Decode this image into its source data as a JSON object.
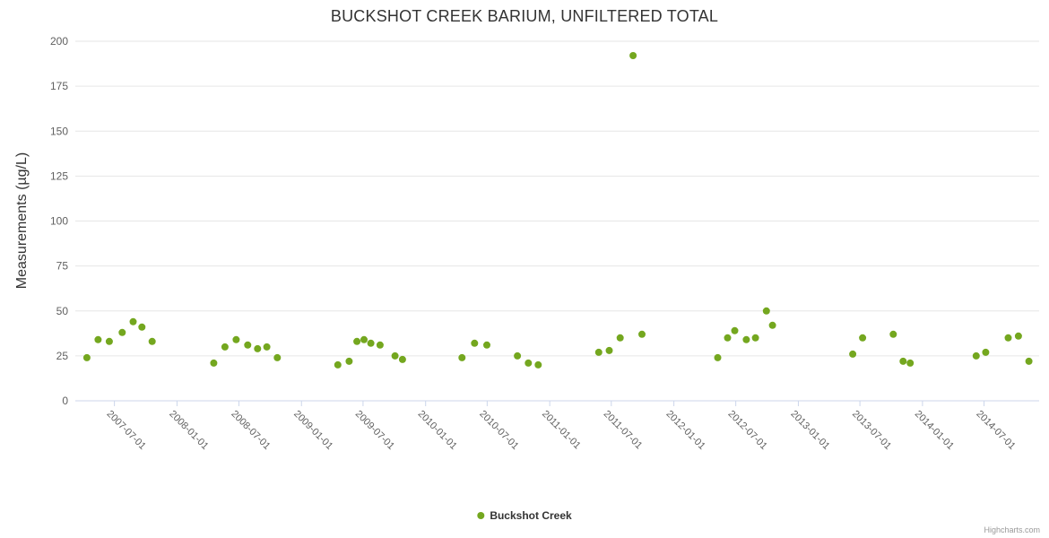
{
  "chart_data": {
    "type": "scatter",
    "title": "BUCKSHOT CREEK BARIUM, UNFILTERED TOTAL",
    "xlabel": "",
    "ylabel": "Measurements (µg/L)",
    "ylim": [
      0,
      200
    ],
    "yticks": [
      0,
      25,
      50,
      75,
      100,
      125,
      150,
      175,
      200
    ],
    "xlim": [
      "2007-03-08",
      "2014-12-10"
    ],
    "xticks": [
      "2007-07-01",
      "2008-01-01",
      "2008-07-01",
      "2009-01-01",
      "2009-07-01",
      "2010-01-01",
      "2010-07-01",
      "2011-01-01",
      "2011-07-01",
      "2012-01-01",
      "2012-07-01",
      "2013-01-01",
      "2013-07-01",
      "2014-01-01",
      "2014-07-01"
    ],
    "grid": "horizontal-only",
    "legend_position": "bottom-center",
    "colors": {
      "grid": "#e6e6e6",
      "axis_line": "#ccd6eb",
      "tick_label": "#606060",
      "title": "#333333",
      "point": "#74a71f"
    },
    "series": [
      {
        "name": "Buckshot Creek",
        "color": "#74a71f",
        "marker": "circle",
        "data": [
          [
            "2007-04-11",
            24
          ],
          [
            "2007-05-14",
            34
          ],
          [
            "2007-06-16",
            33
          ],
          [
            "2007-07-24",
            38
          ],
          [
            "2007-08-25",
            44
          ],
          [
            "2007-09-20",
            41
          ],
          [
            "2007-10-20",
            33
          ],
          [
            "2008-04-18",
            21
          ],
          [
            "2008-05-21",
            30
          ],
          [
            "2008-06-23",
            34
          ],
          [
            "2008-07-27",
            31
          ],
          [
            "2008-08-25",
            29
          ],
          [
            "2008-09-21",
            30
          ],
          [
            "2008-10-22",
            24
          ],
          [
            "2009-04-18",
            20
          ],
          [
            "2009-05-21",
            22
          ],
          [
            "2009-06-13",
            33
          ],
          [
            "2009-07-04",
            34
          ],
          [
            "2009-07-24",
            32
          ],
          [
            "2009-08-20",
            31
          ],
          [
            "2009-10-03",
            25
          ],
          [
            "2009-10-25",
            23
          ],
          [
            "2010-04-18",
            24
          ],
          [
            "2010-05-25",
            32
          ],
          [
            "2010-06-30",
            31
          ],
          [
            "2010-09-28",
            25
          ],
          [
            "2010-10-30",
            21
          ],
          [
            "2010-11-28",
            20
          ],
          [
            "2011-05-25",
            27
          ],
          [
            "2011-06-25",
            28
          ],
          [
            "2011-07-27",
            35
          ],
          [
            "2011-09-03",
            192
          ],
          [
            "2011-09-29",
            37
          ],
          [
            "2012-05-09",
            24
          ],
          [
            "2012-06-07",
            35
          ],
          [
            "2012-06-28",
            39
          ],
          [
            "2012-08-01",
            34
          ],
          [
            "2012-08-28",
            35
          ],
          [
            "2012-09-29",
            50
          ],
          [
            "2012-10-17",
            42
          ],
          [
            "2013-06-10",
            26
          ],
          [
            "2013-07-09",
            35
          ],
          [
            "2013-10-07",
            37
          ],
          [
            "2013-11-05",
            22
          ],
          [
            "2013-11-26",
            21
          ],
          [
            "2014-06-08",
            25
          ],
          [
            "2014-07-06",
            27
          ],
          [
            "2014-09-10",
            35
          ],
          [
            "2014-10-10",
            36
          ],
          [
            "2014-11-10",
            22
          ]
        ]
      }
    ],
    "credits": "Highcharts.com"
  }
}
